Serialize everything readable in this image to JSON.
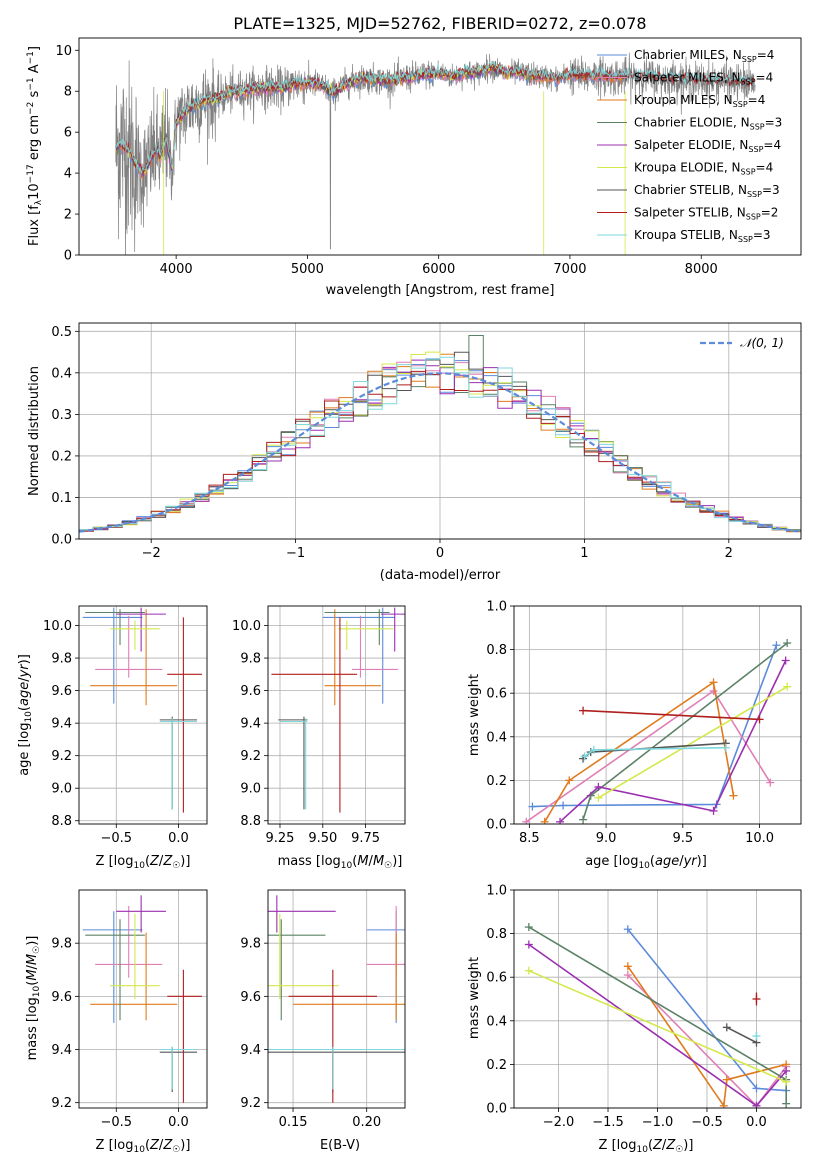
{
  "colors": {
    "Chabrier MILES": "#5b8bd9",
    "Salpeter MILES": "#e07fb5",
    "Kroupa MILES": "#e07a1c",
    "Chabrier ELODIE": "#5b8266",
    "Salpeter ELODIE": "#9b2fb0",
    "Kroupa ELODIE": "#d4e84a",
    "Chabrier STELIB": "#555555",
    "Salpeter STELIB": "#b01e1e",
    "Kroupa STELIB": "#7ed8dc",
    "data": "#808080",
    "normal": "#5b8bd9",
    "grid": "#b0b0b0"
  },
  "chart_data": [
    {
      "id": "spectrum",
      "type": "line",
      "title": "PLATE=1325, MJD=52762, FIBERID=0272, z=0.078",
      "xlabel": "wavelength [Angstrom, rest frame]",
      "ylabel": "Flux [f_λ10^-17 erg cm^-2 s^-1 A^-1]",
      "xlim": [
        3260,
        8760
      ],
      "ylim": [
        0,
        10.6
      ],
      "xticks": [
        "4000",
        "5000",
        "6000",
        "7000",
        "8000"
      ],
      "yticks": [
        "0",
        "2",
        "4",
        "6",
        "8",
        "10"
      ],
      "grid": false,
      "legend_position": "upper-right",
      "legend": [
        {
          "name": "Chabrier MILES",
          "nssp": "4",
          "wave_max": 7400
        },
        {
          "name": "Salpeter MILES",
          "nssp": "4",
          "wave_max": 7400
        },
        {
          "name": "Kroupa MILES",
          "nssp": "4",
          "wave_max": 7400
        },
        {
          "name": "Chabrier ELODIE",
          "nssp": "3",
          "wave_max": 6800
        },
        {
          "name": "Salpeter ELODIE",
          "nssp": "4",
          "wave_max": 6800
        },
        {
          "name": "Kroupa ELODIE",
          "nssp": "4",
          "wave_max": 6800
        },
        {
          "name": "Chabrier STELIB",
          "nssp": "3",
          "wave_max": 8400
        },
        {
          "name": "Salpeter STELIB",
          "nssp": "2",
          "wave_max": 8400
        },
        {
          "name": "Kroupa STELIB",
          "nssp": "3",
          "wave_max": 8400
        }
      ],
      "spectrum_range": [
        3540,
        8410
      ],
      "continuum": {
        "x": [
          3540,
          3580,
          3650,
          3700,
          3750,
          3800,
          3850,
          3880,
          3920,
          3970,
          4000,
          4050,
          4100,
          4200,
          4300,
          4400,
          4500,
          4600,
          4700,
          4800,
          4900,
          5000,
          5100,
          5200,
          5300,
          5400,
          5500,
          5600,
          5700,
          5800,
          5900,
          6000,
          6100,
          6200,
          6300,
          6400,
          6500,
          6600,
          6700,
          6800,
          6900,
          7000,
          7100,
          7200,
          7300,
          7400,
          7500,
          7600,
          7700,
          7800,
          7900,
          8000,
          8100,
          8200,
          8300,
          8400
        ],
        "y": [
          5.2,
          5.4,
          5.0,
          4.3,
          4.0,
          4.6,
          5.2,
          4.7,
          5.7,
          4.2,
          6.5,
          6.8,
          7.2,
          7.5,
          7.6,
          7.9,
          8.0,
          8.1,
          8.2,
          8.1,
          8.4,
          8.4,
          8.3,
          7.9,
          8.4,
          8.6,
          8.6,
          8.5,
          8.6,
          8.7,
          8.8,
          8.9,
          8.7,
          8.9,
          8.9,
          9.2,
          8.9,
          8.9,
          8.8,
          8.7,
          8.6,
          8.8,
          8.7,
          8.8,
          8.7,
          8.7,
          8.7,
          8.7,
          8.6,
          8.6,
          8.5,
          8.5,
          8.5,
          8.5,
          8.4,
          8.4
        ]
      }
    },
    {
      "id": "residuals",
      "type": "step",
      "xlabel": "(data-model)/error",
      "ylabel": "Normed distribution",
      "xlim": [
        -2.5,
        2.5
      ],
      "ylim": [
        0,
        0.52
      ],
      "xticks": [
        "−2",
        "−1",
        "0",
        "1",
        "2"
      ],
      "yticks": [
        "0.0",
        "0.1",
        "0.2",
        "0.3",
        "0.4",
        "0.5"
      ],
      "grid": true,
      "legend": [
        "𝒩(0, 1)"
      ],
      "bin_width": 0.1
    },
    {
      "id": "age-vs-Z",
      "type": "errorbar",
      "xlabel": "Z [log10(Z/Z☉)]",
      "ylabel": "age [log10(age/yr)]",
      "xlim": [
        -0.8,
        0.23
      ],
      "ylim": [
        8.78,
        10.12
      ],
      "xticks": [
        "−0.5",
        "0.0"
      ],
      "yticks": [
        "8.8",
        "9.0",
        "9.2",
        "9.4",
        "9.6",
        "9.8",
        "10.0"
      ],
      "grid": true
    },
    {
      "id": "age-vs-mass",
      "type": "errorbar",
      "xlabel": "mass [log10(M/M☉)]",
      "ylabel": "",
      "xlim": [
        9.18,
        9.98
      ],
      "ylim": [
        8.78,
        10.12
      ],
      "xticks": [
        "9.25",
        "9.50",
        "9.75"
      ],
      "yticks": [
        "8.8",
        "9.0",
        "9.2",
        "9.4",
        "9.6",
        "9.8",
        "10.0"
      ],
      "grid": true
    },
    {
      "id": "weight-vs-age",
      "type": "line",
      "xlabel": "age [log10(age/yr)]",
      "ylabel": "mass weight",
      "xlim": [
        8.4,
        10.27
      ],
      "ylim": [
        0,
        1
      ],
      "xticks": [
        "8.5",
        "9.0",
        "9.5",
        "10.0"
      ],
      "yticks": [
        "0.0",
        "0.2",
        "0.4",
        "0.6",
        "0.8",
        "1.0"
      ],
      "grid": true,
      "series": [
        {
          "name": "Chabrier MILES",
          "x": [
            8.52,
            8.72,
            9.72,
            10.11
          ],
          "y": [
            0.08,
            0.085,
            0.09,
            0.82
          ]
        },
        {
          "name": "Salpeter MILES",
          "x": [
            8.48,
            9.7,
            10.07
          ],
          "y": [
            0.01,
            0.61,
            0.19
          ]
        },
        {
          "name": "Kroupa MILES",
          "x": [
            8.6,
            8.76,
            9.7,
            9.83
          ],
          "y": [
            0.01,
            0.2,
            0.65,
            0.13
          ]
        },
        {
          "name": "Chabrier ELODIE",
          "x": [
            8.85,
            8.9,
            10.18
          ],
          "y": [
            0.02,
            0.13,
            0.83
          ]
        },
        {
          "name": "Salpeter ELODIE",
          "x": [
            8.7,
            8.95,
            9.7,
            10.17
          ],
          "y": [
            0.01,
            0.17,
            0.06,
            0.75
          ]
        },
        {
          "name": "Kroupa ELODIE",
          "x": [
            8.95,
            10.18
          ],
          "y": [
            0.12,
            0.63
          ]
        },
        {
          "name": "Chabrier STELIB",
          "x": [
            8.85,
            8.9,
            9.78
          ],
          "y": [
            0.3,
            0.33,
            0.37
          ]
        },
        {
          "name": "Salpeter STELIB",
          "x": [
            8.85,
            10.0
          ],
          "y": [
            0.52,
            0.48
          ]
        },
        {
          "name": "Kroupa STELIB",
          "x": [
            8.86,
            8.92,
            9.78
          ],
          "y": [
            0.31,
            0.34,
            0.35
          ]
        }
      ]
    },
    {
      "id": "mass-vs-Z",
      "type": "errorbar",
      "xlabel": "Z [log10(Z/Z☉)]",
      "ylabel": "mass [log10(M/M☉)]",
      "xlim": [
        -0.8,
        0.23
      ],
      "ylim": [
        9.18,
        10.0
      ],
      "xticks": [
        "−0.5",
        "0.0"
      ],
      "yticks": [
        "9.2",
        "9.4",
        "9.6",
        "9.8"
      ],
      "grid": true
    },
    {
      "id": "mass-vs-EBV",
      "type": "errorbar",
      "xlabel": "E(B-V)",
      "ylabel": "",
      "xlim": [
        0.133,
        0.226
      ],
      "ylim": [
        9.18,
        10.0
      ],
      "xticks": [
        "0.15",
        "0.20"
      ],
      "yticks": [
        "9.2",
        "9.4",
        "9.6",
        "9.8"
      ],
      "grid": true
    },
    {
      "id": "weight-vs-Z",
      "type": "line",
      "xlabel": "Z [log10(Z/Z☉)]",
      "ylabel": "mass weight",
      "xlim": [
        -2.45,
        0.45
      ],
      "ylim": [
        0,
        1
      ],
      "xticks": [
        "−2.0",
        "−1.5",
        "−1.0",
        "−0.5",
        "0.0"
      ],
      "yticks": [
        "0.0",
        "0.2",
        "0.4",
        "0.6",
        "0.8",
        "1.0"
      ],
      "grid": true,
      "series": [
        {
          "name": "Chabrier MILES",
          "x": [
            -1.3,
            0.0,
            0.3
          ],
          "y": [
            0.82,
            0.09,
            0.08
          ]
        },
        {
          "name": "Salpeter MILES",
          "x": [
            -1.3,
            0.0,
            0.3
          ],
          "y": [
            0.61,
            0.01,
            0.19
          ]
        },
        {
          "name": "Kroupa MILES",
          "x": [
            -1.3,
            -0.33,
            -0.3,
            0.3
          ],
          "y": [
            0.65,
            0.01,
            0.13,
            0.2
          ]
        },
        {
          "name": "Chabrier ELODIE",
          "x": [
            -2.3,
            0.3,
            0.3
          ],
          "y": [
            0.83,
            0.13,
            0.02
          ]
        },
        {
          "name": "Salpeter ELODIE",
          "x": [
            -2.3,
            0.0,
            0.3
          ],
          "y": [
            0.75,
            0.01,
            0.17
          ]
        },
        {
          "name": "Kroupa ELODIE",
          "x": [
            -2.3,
            0.3
          ],
          "y": [
            0.63,
            0.12
          ]
        },
        {
          "name": "Chabrier STELIB",
          "x": [
            -0.3,
            0.0
          ],
          "y": [
            0.37,
            0.3
          ]
        },
        {
          "name": "Salpeter STELIB",
          "x": [
            0.0
          ],
          "y": [
            0.5
          ],
          "yerr": [
            0.03
          ]
        },
        {
          "name": "Kroupa STELIB",
          "x": [
            0.0
          ],
          "y": [
            0.33
          ],
          "yerr": [
            0.02
          ]
        }
      ]
    }
  ],
  "errorbars": [
    {
      "name": "Chabrier MILES",
      "Z": -0.52,
      "Zerr": [
        0.25,
        0.23
      ],
      "age": 10.05,
      "ageerr": [
        0.53,
        0.06
      ],
      "mass": 9.85,
      "masserr": [
        0.35,
        0.07
      ],
      "ebv": 0.22,
      "ebverr": [
        0.02,
        0.02
      ]
    },
    {
      "name": "Salpeter MILES",
      "Z": -0.4,
      "Zerr": [
        0.27,
        0.27
      ],
      "age": 9.73,
      "ageerr": [
        0.05,
        0.33
      ],
      "mass": 9.72,
      "masserr": [
        0.05,
        0.22
      ],
      "ebv": 0.22,
      "ebverr": [
        0.02,
        0.02
      ]
    },
    {
      "name": "Kroupa MILES",
      "Z": -0.26,
      "Zerr": [
        0.45,
        0.25
      ],
      "age": 9.63,
      "ageerr": [
        0.12,
        0.47
      ],
      "mass": 9.57,
      "masserr": [
        0.06,
        0.27
      ],
      "ebv": 0.22,
      "ebverr": [
        0.07,
        0.07
      ]
    },
    {
      "name": "Chabrier ELODIE",
      "Z": -0.47,
      "Zerr": [
        0.28,
        0.2
      ],
      "age": 10.08,
      "ageerr": [
        0.2,
        0.02
      ],
      "mass": 9.83,
      "masserr": [
        0.32,
        0.06
      ],
      "ebv": 0.142,
      "ebverr": [
        0.03,
        0.03
      ]
    },
    {
      "name": "Salpeter ELODIE",
      "Z": -0.3,
      "Zerr": [
        0.2,
        0.2
      ],
      "age": 10.07,
      "ageerr": [
        0.23,
        0.04
      ],
      "mass": 9.92,
      "masserr": [
        0.08,
        0.06
      ],
      "ebv": 0.139,
      "ebverr": [
        0.04,
        0.04
      ]
    },
    {
      "name": "Kroupa ELODIE",
      "Z": -0.35,
      "Zerr": [
        0.2,
        0.2
      ],
      "age": 9.98,
      "ageerr": [
        0.13,
        0.05
      ],
      "mass": 9.64,
      "masserr": [
        0.05,
        0.27
      ],
      "ebv": 0.141,
      "ebverr": [
        0.04,
        0.04
      ]
    },
    {
      "name": "Chabrier STELIB",
      "Z": -0.05,
      "Zerr": [
        0.1,
        0.2
      ],
      "age": 9.42,
      "ageerr": [
        0.55,
        0.02
      ],
      "mass": 9.39,
      "masserr": [
        0.15,
        0.02
      ],
      "ebv": 0.177,
      "ebverr": [
        0.06,
        0.06
      ]
    },
    {
      "name": "Salpeter STELIB",
      "Z": 0.04,
      "Zerr": [
        0.13,
        0.15
      ],
      "age": 9.7,
      "ageerr": [
        0.85,
        0.35
      ],
      "mass": 9.6,
      "masserr": [
        0.4,
        0.1
      ],
      "ebv": 0.177,
      "ebverr": [
        0.03,
        0.03
      ]
    },
    {
      "name": "Kroupa STELIB",
      "Z": -0.05,
      "Zerr": [
        0.1,
        0.2
      ],
      "age": 9.41,
      "ageerr": [
        0.54,
        0.02
      ],
      "mass": 9.4,
      "masserr": [
        0.15,
        0.01
      ],
      "ebv": 0.177,
      "ebverr": [
        0.06,
        0.06
      ]
    }
  ]
}
